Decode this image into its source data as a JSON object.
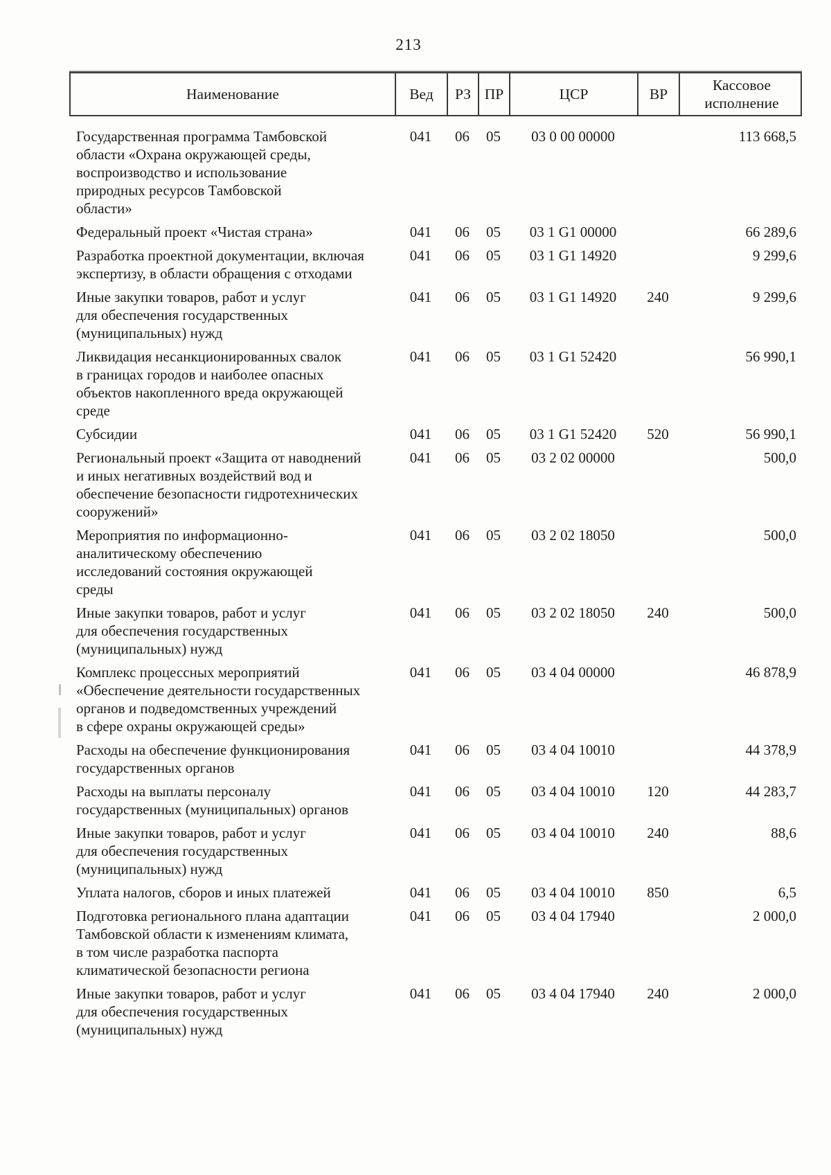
{
  "page": {
    "number": "213"
  },
  "table": {
    "columns": [
      {
        "id": "name",
        "label": "Наименование"
      },
      {
        "id": "ved",
        "label": "Вед"
      },
      {
        "id": "rz",
        "label": "РЗ"
      },
      {
        "id": "pr",
        "label": "ПР"
      },
      {
        "id": "csr",
        "label": "ЦСР"
      },
      {
        "id": "vr",
        "label": "ВР"
      },
      {
        "id": "cash",
        "label": "Кассовое исполнение"
      }
    ],
    "rows": [
      {
        "name": "Государственная программа Тамбовской\nобласти «Охрана окружающей среды,\nвоспроизводство и использование\nприродных ресурсов Тамбовской\nобласти»",
        "ved": "041",
        "rz": "06",
        "pr": "05",
        "csr": "03 0 00 00000",
        "vr": "",
        "cash": "113 668,5"
      },
      {
        "name": "Федеральный проект «Чистая страна»",
        "ved": "041",
        "rz": "06",
        "pr": "05",
        "csr": "03 1 G1 00000",
        "vr": "",
        "cash": "66 289,6"
      },
      {
        "name": "Разработка проектной документации, включая\nэкспертизу, в области обращения с отходами",
        "ved": "041",
        "rz": "06",
        "pr": "05",
        "csr": "03 1 G1 14920",
        "vr": "",
        "cash": "9 299,6"
      },
      {
        "name": "Иные закупки товаров, работ и услуг\nдля обеспечения государственных\n(муниципальных) нужд",
        "ved": "041",
        "rz": "06",
        "pr": "05",
        "csr": "03 1 G1 14920",
        "vr": "240",
        "cash": "9 299,6"
      },
      {
        "name": "Ликвидация несанкционированных свалок\nв границах городов и наиболее опасных\nобъектов накопленного вреда окружающей\nсреде",
        "ved": "041",
        "rz": "06",
        "pr": "05",
        "csr": "03 1 G1 52420",
        "vr": "",
        "cash": "56 990,1"
      },
      {
        "name": "Субсидии",
        "ved": "041",
        "rz": "06",
        "pr": "05",
        "csr": "03 1 G1 52420",
        "vr": "520",
        "cash": "56 990,1"
      },
      {
        "name": "Региональный проект «Защита от наводнений\nи иных негативных воздействий вод и\nобеспечение безопасности гидротехнических\nсооружений»",
        "ved": "041",
        "rz": "06",
        "pr": "05",
        "csr": "03 2 02 00000",
        "vr": "",
        "cash": "500,0"
      },
      {
        "name": "Мероприятия по информационно-\nаналитическому обеспечению\nисследований состояния окружающей\nсреды",
        "ved": "041",
        "rz": "06",
        "pr": "05",
        "csr": "03 2 02 18050",
        "vr": "",
        "cash": "500,0"
      },
      {
        "name": "Иные закупки товаров, работ и услуг\nдля обеспечения государственных\n(муниципальных) нужд",
        "ved": "041",
        "rz": "06",
        "pr": "05",
        "csr": "03 2 02 18050",
        "vr": "240",
        "cash": "500,0"
      },
      {
        "name": "Комплекс процессных мероприятий\n«Обеспечение деятельности государственных\nорганов и подведомственных учреждений\nв сфере охраны окружающей среды»",
        "ved": "041",
        "rz": "06",
        "pr": "05",
        "csr": "03 4 04 00000",
        "vr": "",
        "cash": "46 878,9"
      },
      {
        "name": "Расходы на обеспечение функционирования\nгосударственных органов",
        "ved": "041",
        "rz": "06",
        "pr": "05",
        "csr": "03 4 04 10010",
        "vr": "",
        "cash": "44 378,9"
      },
      {
        "name": "Расходы на выплаты персоналу\nгосударственных (муниципальных) органов",
        "ved": "041",
        "rz": "06",
        "pr": "05",
        "csr": "03 4 04 10010",
        "vr": "120",
        "cash": "44 283,7"
      },
      {
        "name": "Иные закупки товаров, работ и услуг\nдля обеспечения государственных\n(муниципальных) нужд",
        "ved": "041",
        "rz": "06",
        "pr": "05",
        "csr": "03 4 04 10010",
        "vr": "240",
        "cash": "88,6"
      },
      {
        "name": "Уплата налогов, сборов и иных платежей",
        "ved": "041",
        "rz": "06",
        "pr": "05",
        "csr": "03 4 04 10010",
        "vr": "850",
        "cash": "6,5"
      },
      {
        "name": "Подготовка регионального плана адаптации\nТамбовской области к изменениям климата,\nв том числе разработка паспорта\nклиматической безопасности региона",
        "ved": "041",
        "rz": "06",
        "pr": "05",
        "csr": "03 4 04 17940",
        "vr": "",
        "cash": "2 000,0"
      },
      {
        "name": "Иные закупки товаров, работ и услуг\nдля обеспечения государственных\n(муниципальных) нужд",
        "ved": "041",
        "rz": "06",
        "pr": "05",
        "csr": "03 4 04 17940",
        "vr": "240",
        "cash": "2 000,0"
      }
    ]
  }
}
